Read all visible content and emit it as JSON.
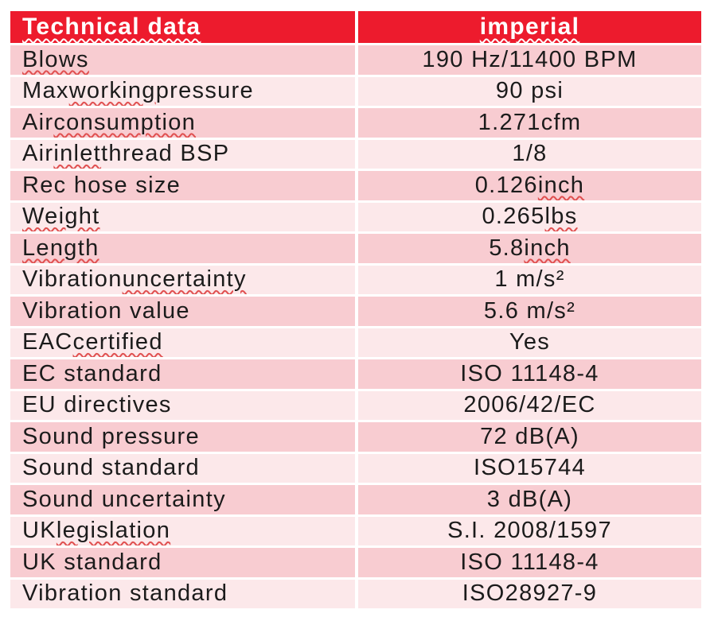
{
  "colors": {
    "header_bg": "#ED1B2D",
    "header_text": "#FFFFFF",
    "row_dark": "#F8CCD1",
    "row_light": "#FCE8EA",
    "text": "#1B1B1B",
    "squiggle": "#E05050",
    "header_squiggle": "#FFFFFF"
  },
  "header": {
    "label": "Technical data",
    "value": "imperial"
  },
  "rows": [
    {
      "label": "Blows",
      "value": "190 Hz/11400 BPM",
      "label_squiggle": "Blows"
    },
    {
      "label": "Max working pressure",
      "value": "90 psi",
      "label_squiggle": "working"
    },
    {
      "label": "Air consumption",
      "value": "1.271cfm",
      "label_squiggle": "consumption"
    },
    {
      "label": "Air inlet thread BSP",
      "value": "1/8",
      "label_squiggle": "inlet"
    },
    {
      "label": "Rec hose size",
      "value": "0.126 inch",
      "value_squiggle": "inch"
    },
    {
      "label": "Weight",
      "value": "0.265 lbs",
      "label_squiggle": "Weight",
      "value_squiggle": "lbs"
    },
    {
      "label": "Length",
      "value": "5.8 inch",
      "label_squiggle": "Length",
      "value_squiggle": "inch"
    },
    {
      "label": "Vibration uncertainty",
      "value": "1 m/s²",
      "label_squiggle": "uncertainty"
    },
    {
      "label": "Vibration value",
      "value": "5.6 m/s²"
    },
    {
      "label": "EAC certified",
      "value": "Yes",
      "label_squiggle": "certified"
    },
    {
      "label": "EC standard",
      "value": "ISO 11148-4"
    },
    {
      "label": "EU directives",
      "value": "2006/42/EC"
    },
    {
      "label": "Sound pressure",
      "value": "72 dB(A)"
    },
    {
      "label": "Sound standard",
      "value": "ISO15744"
    },
    {
      "label": "Sound uncertainty",
      "value": "3 dB(A)"
    },
    {
      "label": "UK legislation",
      "value": "S.I. 2008/1597",
      "label_squiggle": "legislation"
    },
    {
      "label": "UK standard",
      "value": "ISO 11148-4"
    },
    {
      "label": "Vibration standard",
      "value": "ISO28927-9"
    }
  ]
}
